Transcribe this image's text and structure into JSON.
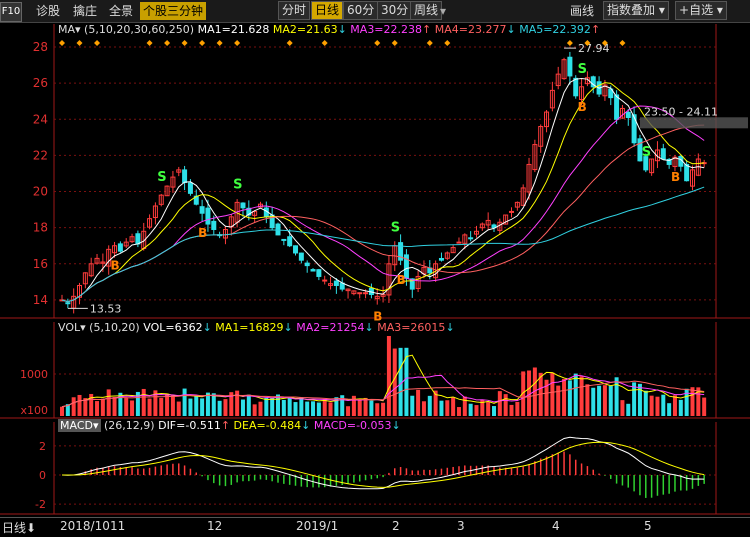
{
  "toolbar": {
    "f10": "F10",
    "left_items": [
      "诊股",
      "擒庄",
      "全景"
    ],
    "active_item": "个股三分钟",
    "periods": [
      "分时",
      "日线",
      "60分",
      "30分",
      "周线"
    ],
    "selected_period": "日线",
    "right_items": [
      "画线",
      "指数叠加",
      "自选"
    ]
  },
  "ma_legend": {
    "label": "MA",
    "params": "(5,10,20,30,60,250)",
    "ma1": "MA1=21.628",
    "ma2": "MA2=21.63",
    "ma3": "MA3=22.238",
    "ma4": "MA4=23.277",
    "ma5": "MA5=22.392"
  },
  "vol_legend": {
    "label": "VOL",
    "params": "(5,10,20)",
    "vol": "VOL=6362",
    "ma1": "MA1=16829",
    "ma2": "MA2=21254",
    "ma3": "MA3=26015"
  },
  "macd_legend": {
    "label": "MACD",
    "params": "(26,12,9)",
    "dif": "DIF=-0.511",
    "dea": "DEA=-0.484",
    "macd": "MACD=-0.053"
  },
  "price_axis": [
    "28",
    "26",
    "24",
    "22",
    "20",
    "18",
    "16",
    "14"
  ],
  "vol_axis": [
    "1000",
    "x100"
  ],
  "macd_axis": [
    "2",
    "0",
    "-2"
  ],
  "annotations": {
    "high": "27.94",
    "low": "13.53",
    "range": "23.50 - 24.11"
  },
  "signals": {
    "buy": "B",
    "sell": "S"
  },
  "date_axis": [
    "2018/10",
    "11",
    "12",
    "2019/1",
    "2",
    "3",
    "4",
    "5"
  ],
  "bottom_label": "日线",
  "colors": {
    "up": "#ff3c3c",
    "down": "#2ee0e8",
    "ma1": "#ffffff",
    "ma2": "#ffff00",
    "ma3": "#ff40ff",
    "ma4": "#ff6060",
    "ma5": "#30d0e0",
    "grid": "#7a1010",
    "axis": "#a01818"
  },
  "chart_data": {
    "type": "candlestick",
    "ylim": [
      13,
      28.5
    ],
    "closes": [
      14.0,
      13.8,
      14.2,
      14.8,
      15.5,
      16.0,
      16.3,
      16.1,
      16.8,
      17.0,
      16.7,
      17.2,
      17.5,
      17.1,
      17.8,
      18.5,
      19.2,
      19.8,
      20.3,
      20.8,
      21.2,
      20.5,
      19.9,
      19.3,
      18.8,
      18.2,
      17.9,
      17.6,
      17.9,
      18.6,
      19.4,
      19.1,
      18.7,
      18.9,
      19.3,
      18.6,
      18.0,
      17.6,
      17.3,
      17.0,
      16.6,
      16.2,
      15.9,
      15.6,
      15.3,
      15.1,
      14.9,
      14.8,
      14.6,
      14.6,
      14.5,
      14.4,
      14.4,
      14.3,
      14.2,
      14.3,
      16.0,
      17.0,
      16.2,
      15.2,
      14.6,
      15.3,
      15.8,
      15.5,
      16.0,
      16.2,
      16.6,
      16.9,
      17.2,
      17.6,
      17.4,
      17.8,
      18.2,
      18.4,
      18.0,
      18.3,
      18.7,
      18.9,
      19.4,
      20.2,
      21.5,
      22.6,
      23.6,
      24.4,
      25.6,
      26.5,
      27.3,
      26.4,
      25.3,
      25.8,
      26.3,
      25.8,
      25.4,
      25.9,
      25.2,
      24.0,
      24.6,
      24.1,
      22.7,
      21.7,
      21.2,
      21.8,
      22.3,
      21.8,
      21.5,
      21.9,
      21.4,
      20.6,
      21.2,
      21.8,
      21.6
    ]
  }
}
